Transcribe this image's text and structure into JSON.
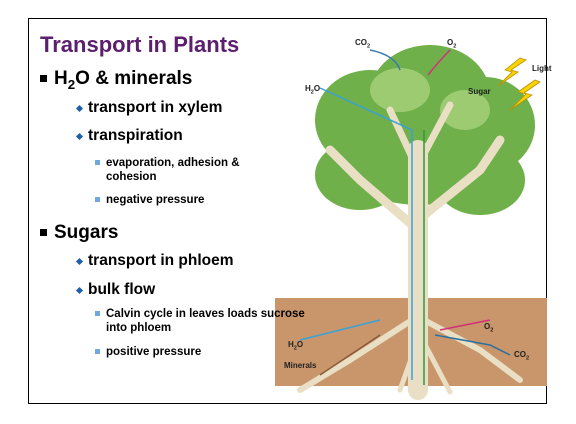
{
  "title": "Transport in Plants",
  "outline": [
    {
      "label": {
        "lead": "H",
        "sub": "2",
        "rest": "O & minerals"
      },
      "items": [
        {
          "label": "transport in xylem"
        },
        {
          "label": "transpiration",
          "items": [
            "evaporation, adhesion & cohesion",
            "negative pressure"
          ]
        }
      ]
    },
    {
      "label": "Sugars",
      "items": [
        {
          "label": "transport in phloem"
        },
        {
          "label": "bulk flow",
          "items": [
            "Calvin cycle in leaves loads sucrose into phloem",
            "positive pressure"
          ]
        }
      ]
    }
  ],
  "diagram_labels": [
    {
      "lead": "CO",
      "sub": "2"
    },
    {
      "lead": "O",
      "sub": "2"
    },
    {
      "lead": "Light"
    },
    {
      "lead": "H",
      "sub": "2",
      "rest": "O"
    },
    {
      "lead": "Sugar"
    },
    {
      "lead": "H",
      "sub": "2",
      "rest": "O"
    },
    {
      "lead": "Minerals"
    },
    {
      "lead": "O",
      "sub": "2"
    },
    {
      "lead": "CO",
      "sub": "2"
    }
  ]
}
